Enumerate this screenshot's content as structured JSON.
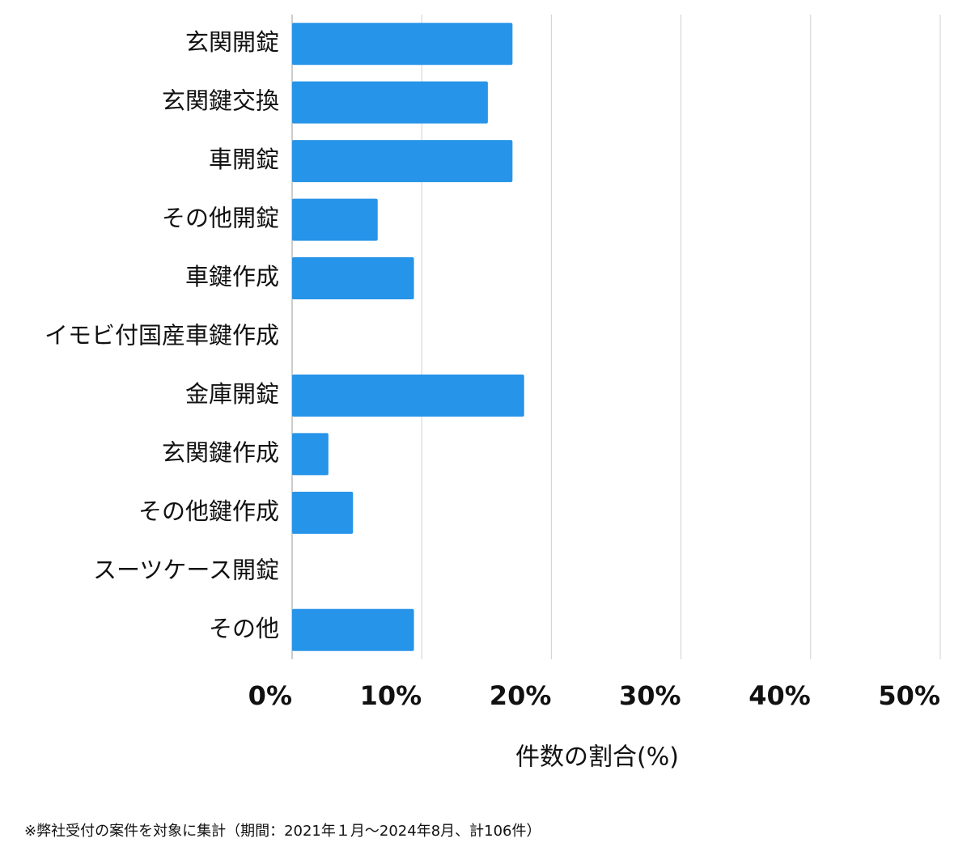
{
  "chart_data": {
    "type": "hbar",
    "categories": [
      "玄関開錠",
      "玄関鍵交換",
      "車開錠",
      "その他開錠",
      "車鍵作成",
      "イモビ付国産車鍵作成",
      "金庫開錠",
      "玄関鍵作成",
      "その他鍵作成",
      "スーツケース開錠",
      "その他"
    ],
    "values": [
      17.0,
      15.1,
      17.0,
      6.6,
      9.4,
      0,
      17.9,
      2.8,
      4.7,
      0,
      9.4
    ],
    "color": "#2694e8",
    "xlim": [
      0,
      50
    ],
    "xticks": [
      {
        "value": 0,
        "label": "0%"
      },
      {
        "value": 10,
        "label": "10%"
      },
      {
        "value": 20,
        "label": "20%"
      },
      {
        "value": 30,
        "label": "30%"
      },
      {
        "value": 40,
        "label": "40%"
      },
      {
        "value": 50,
        "label": "50%"
      }
    ],
    "xlabel": "件数の割合(%)",
    "grid": true,
    "note": "※弊社受付の案件を対象に集計（期間：2021年１月～2024年8月、計106件）"
  }
}
